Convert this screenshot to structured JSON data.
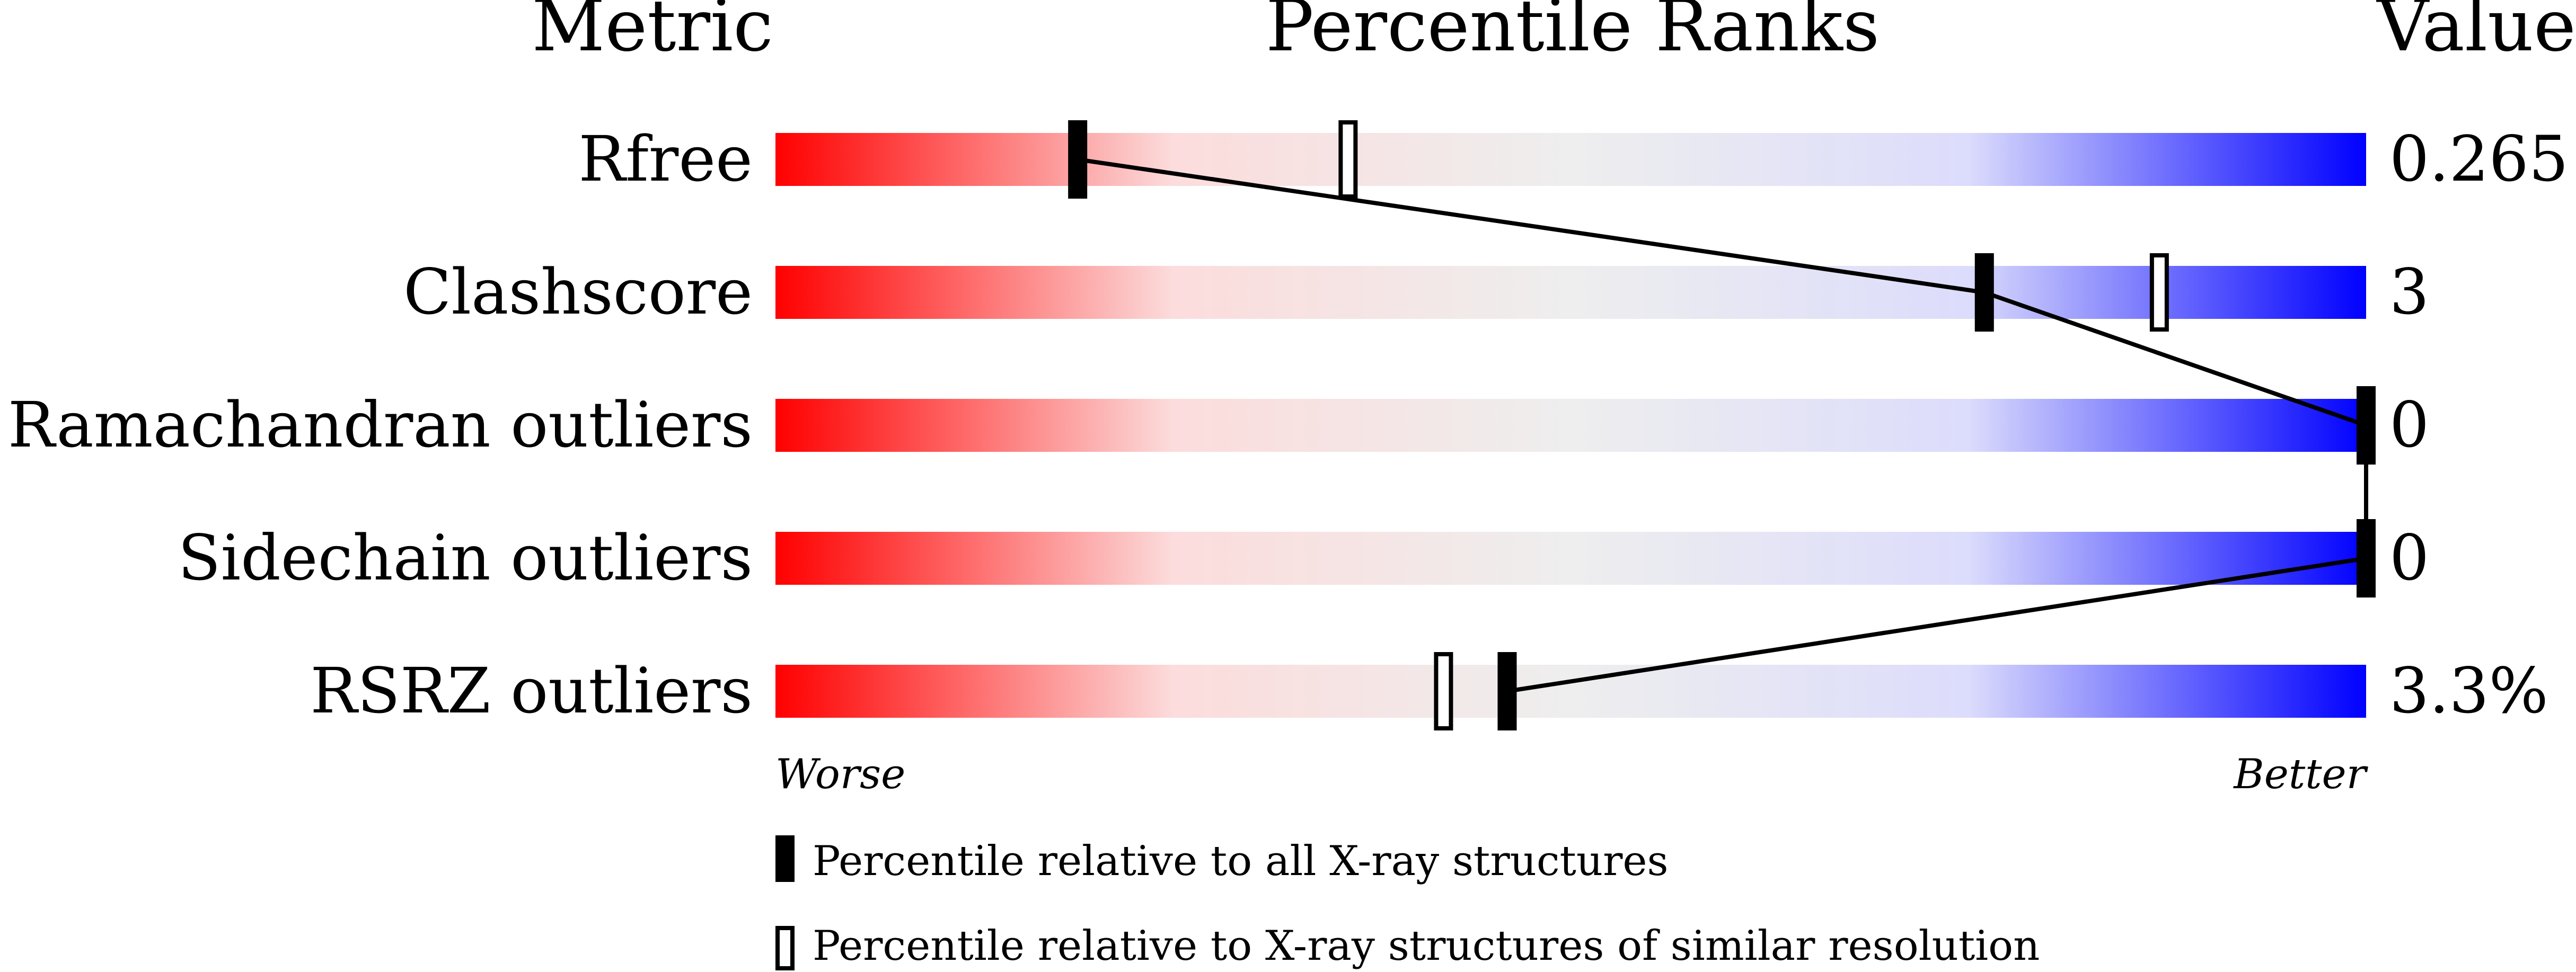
{
  "chart_data": {
    "type": "percentile-slider",
    "header": {
      "metric": "Metric",
      "title": "Percentile Ranks",
      "value": "Value"
    },
    "xlim": [
      0,
      100
    ],
    "axis_labels": {
      "left": "Worse",
      "right": "Better"
    },
    "gradient_colors": [
      "#ff0000",
      "#fcdcdc",
      "#eeeeee",
      "#dcdcfc",
      "#0000ff"
    ],
    "rows": [
      {
        "metric": "Rfree",
        "value": "0.265",
        "percentile_all": 19,
        "percentile_similar": 36
      },
      {
        "metric": "Clashscore",
        "value": "3",
        "percentile_all": 76,
        "percentile_similar": 87
      },
      {
        "metric": "Ramachandran outliers",
        "value": "0",
        "percentile_all": 100,
        "percentile_similar": null
      },
      {
        "metric": "Sidechain outliers",
        "value": "0",
        "percentile_all": 100,
        "percentile_similar": null
      },
      {
        "metric": "RSRZ outliers",
        "value": "3.3%",
        "percentile_all": 46,
        "percentile_similar": 42
      }
    ],
    "legend": [
      {
        "marker": "filled",
        "label": "Percentile relative to all X-ray structures"
      },
      {
        "marker": "open",
        "label": "Percentile relative to X-ray structures of similar resolution"
      }
    ]
  }
}
